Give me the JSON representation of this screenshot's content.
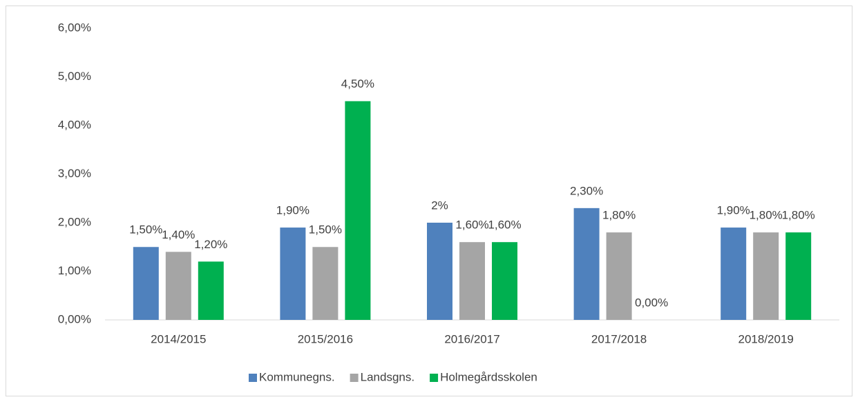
{
  "chart_data": {
    "type": "bar",
    "categories": [
      "2014/2015",
      "2015/2016",
      "2016/2017",
      "2017/2018",
      "2018/2019"
    ],
    "series": [
      {
        "name": "Kommunegns.",
        "color": "#4f81bd",
        "values": [
          1.5,
          1.9,
          2,
          2.3,
          1.9
        ],
        "value_labels": [
          "1,50%",
          "1,90%",
          "2%",
          "2,30%",
          "1,90%"
        ]
      },
      {
        "name": "Landsgns.",
        "color": "#a5a5a5",
        "values": [
          1.4,
          1.5,
          1.6,
          1.8,
          1.8
        ],
        "value_labels": [
          "1,40%",
          "1,50%",
          "1,60%",
          "1,80%",
          "1,80%"
        ]
      },
      {
        "name": "Holmegårdsskolen",
        "color": "#00b050",
        "values": [
          1.2,
          4.5,
          1.6,
          0,
          1.8
        ],
        "value_labels": [
          "1,20%",
          "4,50%",
          "1,60%",
          "0,00%",
          "1,80%"
        ]
      }
    ],
    "ylim": [
      0,
      6
    ],
    "yticks": [
      {
        "value": 0,
        "label": "0,00%"
      },
      {
        "value": 1,
        "label": "1,00%"
      },
      {
        "value": 2,
        "label": "2,00%"
      },
      {
        "value": 3,
        "label": "3,00%"
      },
      {
        "value": 4,
        "label": "4,00%"
      },
      {
        "value": 5,
        "label": "5,00%"
      },
      {
        "value": 6,
        "label": "6,00%"
      }
    ],
    "grid": false,
    "legend": "bottom"
  }
}
